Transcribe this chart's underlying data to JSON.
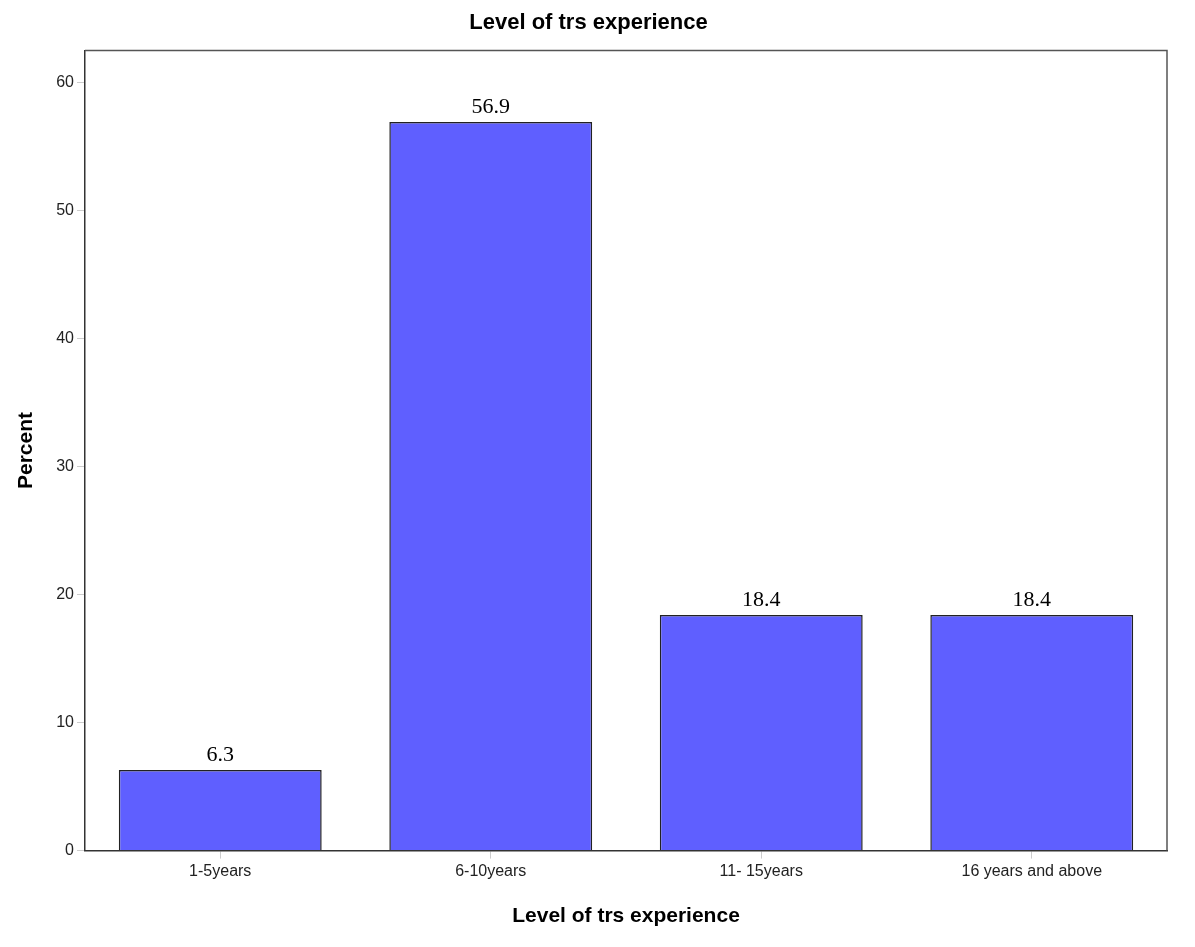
{
  "chart_data": {
    "type": "bar",
    "title": "Level of trs experience",
    "xlabel": "Level of trs experience",
    "ylabel": "Percent",
    "categories": [
      "1-5years",
      "6-10years",
      "11- 15years",
      "16 years and above"
    ],
    "values": [
      6.3,
      56.9,
      18.4,
      18.4
    ],
    "color": "#5f5fff",
    "ylim": [
      0,
      62.5
    ],
    "yticks": [
      0,
      10,
      20,
      30,
      40,
      50,
      60
    ],
    "grid": false,
    "legend": false,
    "data_labels": true
  }
}
